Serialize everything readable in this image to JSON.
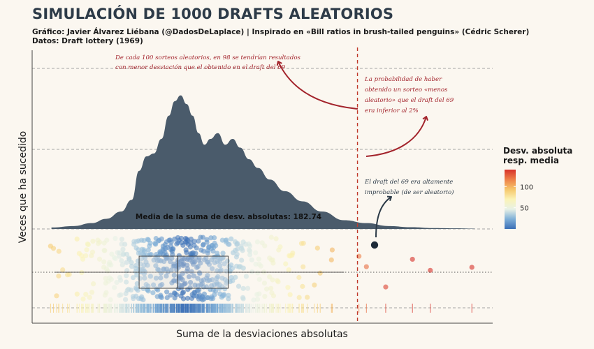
{
  "header": {
    "title": "SIMULACIÓN DE 1000 DRAFTS ALEATORIOS",
    "subtitle": "Gráfico: Javier Álvarez Liébana (@DadosDeLaplace) | Inspirado en «Bill ratios in brush-tailed penguins» (Cédric Scherer)",
    "data_source": "Datos: Draft lottery (1969)"
  },
  "chart_data": {
    "type": "area",
    "description_type": "density + jitter + boxplot + rug",
    "xlabel": "Suma de la desviaciones absolutas",
    "ylabel": "Veces que ha sucedido",
    "xlim": [
      80,
      390
    ],
    "density": {
      "x": [
        93,
        108,
        120,
        130,
        140,
        147,
        152,
        157,
        162,
        167,
        172,
        176,
        180,
        184,
        188,
        192,
        196,
        200,
        205,
        210,
        215,
        220,
        226,
        232,
        240,
        250,
        262,
        275,
        290,
        305,
        320,
        335,
        350,
        365,
        378
      ],
      "y": [
        0.01,
        0.02,
        0.04,
        0.07,
        0.12,
        0.2,
        0.4,
        0.5,
        0.52,
        0.62,
        0.78,
        0.88,
        0.92,
        0.86,
        0.78,
        0.66,
        0.58,
        0.62,
        0.66,
        0.58,
        0.62,
        0.56,
        0.48,
        0.42,
        0.34,
        0.26,
        0.19,
        0.12,
        0.06,
        0.04,
        0.02,
        0.012,
        0.006,
        0.004,
        0.002
      ]
    },
    "mean": 182.74,
    "mean_label": "Media de la suma de desv. absolutas: 182.74",
    "draft_69_value": 299,
    "boxplot": {
      "q1": 152,
      "median": 178,
      "q3": 212,
      "whisker_low": 95,
      "whisker_high": 290
    },
    "colorbar": {
      "title": "Desv. absoluta resp. media",
      "ticks": [
        50,
        100
      ],
      "range": [
        0,
        140
      ],
      "colors": [
        "#3b6fb6",
        "#7fb0d8",
        "#e8f1e6",
        "#fbf3b6",
        "#f6c76b",
        "#ee8048",
        "#d7312a"
      ]
    },
    "annotations": {
      "top_left": [
        "De cada 100 sorteos aleatorios, en 98 se tendrían resultados",
        "con menor desviación que el obtenido en el draft del 69"
      ],
      "right_prob": [
        "La probabilidad de haber",
        "obtenido un sorteo «menos",
        "aleatorio» que el draft del 69",
        "era inferior al 2%"
      ],
      "right_draft": [
        "El draft del 69 era altamente",
        "improbable (de ser aleatorio)"
      ]
    },
    "colors": {
      "density": "#4a5b6b",
      "vline": "#c0392b",
      "annotation_red": "#a3242c",
      "annotation_dark": "#2d3b48",
      "highlight_point": "#1d2a38"
    }
  }
}
